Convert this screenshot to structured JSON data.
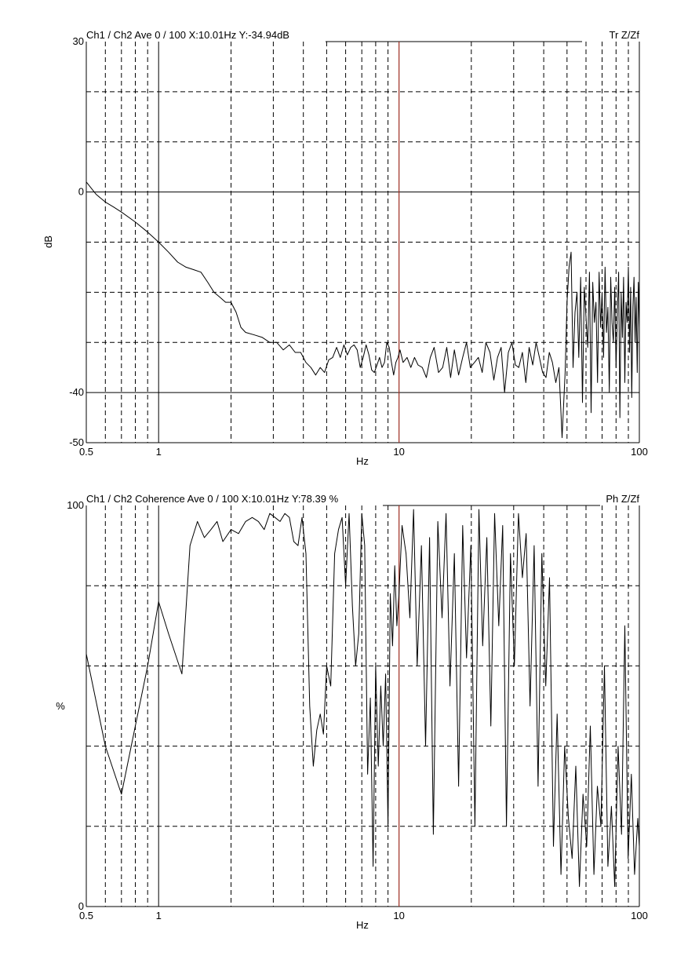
{
  "colors": {
    "cursor": "#c0392b",
    "trace": "#000000",
    "grid": "#000000",
    "background": "#ffffff"
  },
  "chart_data": [
    {
      "type": "line",
      "title": "Ch1 / Ch2  Ave 0 / 100  X:10.01Hz  Y:-34.94dB",
      "right_label": "Tr Z/Zf",
      "xlabel": "Hz",
      "ylabel": "dB",
      "x_scale": "log",
      "xlim": [
        0.5,
        100
      ],
      "ylim": [
        -50,
        30
      ],
      "x_ticks": [
        {
          "value": 0.5,
          "label": "0.5"
        },
        {
          "value": 1,
          "label": "1"
        },
        {
          "value": 10,
          "label": "10"
        },
        {
          "value": 100,
          "label": "100"
        }
      ],
      "y_ticks": [
        {
          "value": 30,
          "label": "30"
        },
        {
          "value": 0,
          "label": "0"
        },
        {
          "value": -40,
          "label": "-40"
        },
        {
          "value": -50,
          "label": "-50"
        }
      ],
      "y_grid_dashed": [
        20,
        10,
        -10,
        -20,
        -30
      ],
      "y_grid_solid": [
        0,
        -40
      ],
      "grid": true,
      "cursor_x": 10.01,
      "series": [
        {
          "x": [
            0.5,
            0.55,
            0.6,
            0.65,
            0.7,
            0.8,
            0.9,
            1.0,
            1.1,
            1.2,
            1.3,
            1.4,
            1.5,
            1.6,
            1.7,
            1.8,
            1.9,
            2.0,
            2.1,
            2.2,
            2.3,
            2.5,
            2.7,
            2.9,
            3.1,
            3.3,
            3.5,
            3.7,
            3.9,
            4.1,
            4.3,
            4.5,
            4.7,
            4.9,
            5.1,
            5.3,
            5.5,
            5.7,
            5.9,
            6.1,
            6.3,
            6.5,
            6.7,
            6.9,
            7.1,
            7.3,
            7.5,
            7.7,
            7.9,
            8.1,
            8.3,
            8.5,
            8.7,
            8.9,
            9.1,
            9.3,
            9.5,
            9.7,
            9.9,
            10.1,
            10.4,
            10.8,
            11.2,
            11.6,
            12.0,
            12.5,
            13.0,
            13.5,
            14.0,
            14.6,
            15.2,
            15.8,
            16.4,
            17.0,
            17.7,
            18.4,
            19.1,
            19.8,
            20.6,
            21.4,
            22.2,
            23.0,
            23.9,
            24.8,
            25.7,
            26.6,
            27.5,
            28.5,
            29.5,
            30.5,
            31.5,
            32.6,
            33.7,
            34.8,
            36.0,
            37.2,
            38.4,
            39.6,
            40.9,
            42.2,
            43.5,
            44.9,
            46.3,
            47.7,
            49.1,
            50.0,
            51.0,
            52.0,
            53.0,
            54.0,
            55.0,
            56.0,
            57.0,
            58.0,
            59.0,
            60.0,
            61.0,
            62.0,
            63.0,
            64.0,
            65.0,
            66.0,
            67.0,
            68.0,
            69.0,
            70.0,
            71.0,
            72.0,
            73.0,
            74.0,
            75.0,
            76.0,
            77.0,
            78.0,
            79.0,
            80.0,
            81.0,
            82.0,
            83.0,
            84.0,
            85.0,
            86.0,
            87.0,
            88.0,
            89.0,
            90.0,
            91.0,
            92.0,
            93.0,
            94.0,
            95.0,
            96.0,
            97.0,
            98.0,
            99.0,
            100.0
          ],
          "y": [
            2.0,
            -0.5,
            -2.0,
            -3.0,
            -4.0,
            -6.0,
            -8.0,
            -10.0,
            -12.0,
            -14.0,
            -15.0,
            -15.5,
            -16.0,
            -18.0,
            -20.0,
            -21.0,
            -22.0,
            -22.0,
            -24.0,
            -27.0,
            -28.0,
            -28.5,
            -29.0,
            -30.0,
            -30.0,
            -31.5,
            -30.5,
            -32.0,
            -32.0,
            -34.0,
            -35.0,
            -36.5,
            -35.0,
            -36.0,
            -33.5,
            -33.0,
            -31.0,
            -33.0,
            -30.5,
            -32.5,
            -31.0,
            -30.5,
            -31.5,
            -35.0,
            -33.0,
            -30.5,
            -32.5,
            -35.5,
            -36.0,
            -34.5,
            -33.0,
            -35.0,
            -34.0,
            -30.0,
            -31.0,
            -34.0,
            -36.5,
            -34.0,
            -33.0,
            -31.5,
            -34.0,
            -33.0,
            -35.0,
            -33.0,
            -34.5,
            -35.0,
            -37.0,
            -33.0,
            -31.0,
            -36.0,
            -35.0,
            -31.0,
            -37.0,
            -31.5,
            -36.5,
            -33.0,
            -30.0,
            -35.0,
            -34.0,
            -33.0,
            -36.0,
            -30.0,
            -32.0,
            -37.5,
            -33.0,
            -31.0,
            -40.0,
            -32.0,
            -30.0,
            -34.5,
            -35.0,
            -32.0,
            -38.0,
            -31.0,
            -34.5,
            -30.0,
            -33.0,
            -36.0,
            -37.0,
            -32.0,
            -34.0,
            -38.0,
            -35.0,
            -49.0,
            -36.0,
            -22.0,
            -15.0,
            -12.0,
            -35.0,
            -24.0,
            -20.0,
            -33.0,
            -17.0,
            -42.0,
            -19.0,
            -25.0,
            -31.0,
            -16.0,
            -44.0,
            -18.0,
            -26.0,
            -22.0,
            -38.0,
            -16.0,
            -27.0,
            -20.0,
            -33.0,
            -15.0,
            -28.0,
            -23.0,
            -40.0,
            -17.0,
            -26.0,
            -30.0,
            -19.0,
            -35.0,
            -24.0,
            -16.0,
            -45.0,
            -20.0,
            -29.0,
            -17.0,
            -38.0,
            -22.0,
            -26.0,
            -15.0,
            -32.0,
            -19.0,
            -41.0,
            -23.0,
            -17.0,
            -30.0,
            -21.0,
            -36.0,
            -18.0,
            -27.0
          ]
        }
      ]
    },
    {
      "type": "line",
      "title": "Ch1 / Ch2  Coherence Ave 0 / 100  X:10.01Hz  Y:78.39 %",
      "right_label": "Ph Z/Zf",
      "xlabel": "Hz",
      "ylabel": "%",
      "x_scale": "log",
      "xlim": [
        0.5,
        100
      ],
      "ylim": [
        0,
        100
      ],
      "x_ticks": [
        {
          "value": 0.5,
          "label": "0.5"
        },
        {
          "value": 1,
          "label": "1"
        },
        {
          "value": 10,
          "label": "10"
        },
        {
          "value": 100,
          "label": "100"
        }
      ],
      "y_ticks": [
        {
          "value": 100,
          "label": "100"
        },
        {
          "value": 0,
          "label": "0"
        }
      ],
      "y_grid_dashed": [
        80,
        60,
        40,
        20
      ],
      "y_grid_solid": [],
      "grid": true,
      "cursor_x": 10.01,
      "series": [
        {
          "x": [
            0.5,
            0.6,
            0.7,
            0.8,
            0.9,
            1.0,
            1.1,
            1.25,
            1.35,
            1.45,
            1.55,
            1.65,
            1.75,
            1.85,
            2.0,
            2.15,
            2.3,
            2.45,
            2.6,
            2.75,
            2.9,
            3.05,
            3.2,
            3.35,
            3.5,
            3.65,
            3.8,
            3.95,
            4.1,
            4.25,
            4.4,
            4.55,
            4.7,
            4.85,
            5.0,
            5.2,
            5.4,
            5.6,
            5.8,
            6.0,
            6.2,
            6.4,
            6.6,
            6.8,
            7.0,
            7.2,
            7.4,
            7.6,
            7.8,
            8.0,
            8.2,
            8.4,
            8.6,
            8.8,
            9.0,
            9.2,
            9.4,
            9.6,
            9.8,
            10.0,
            10.3,
            10.7,
            11.1,
            11.5,
            11.9,
            12.4,
            12.9,
            13.4,
            13.9,
            14.5,
            15.1,
            15.7,
            16.3,
            17.0,
            17.7,
            18.4,
            19.1,
            19.9,
            20.7,
            21.5,
            22.3,
            23.2,
            24.1,
            25.0,
            26.0,
            27.0,
            28.0,
            29.1,
            30.2,
            31.4,
            32.6,
            33.8,
            35.1,
            36.5,
            37.9,
            39.3,
            40.8,
            42.3,
            43.9,
            45.5,
            47.2,
            48.9,
            50.7,
            52.5,
            54.4,
            56.3,
            58.3,
            60.4,
            62.5,
            64.7,
            66.9,
            69.2,
            71.6,
            74.0,
            76.5,
            79.0,
            81.6,
            84.3,
            87.0,
            89.8,
            92.6,
            95.5,
            98.5,
            100.0
          ],
          "y": [
            63,
            40,
            28,
            45,
            60,
            76,
            68,
            58,
            90,
            96,
            92,
            94,
            96,
            91,
            94,
            93,
            96,
            97,
            96,
            94,
            98,
            97,
            96,
            98,
            97,
            91,
            90,
            97,
            88,
            50,
            35,
            44,
            48,
            43,
            60,
            55,
            88,
            94,
            97,
            80,
            98,
            75,
            60,
            68,
            98,
            90,
            33,
            52,
            10,
            60,
            35,
            55,
            40,
            58,
            20,
            78,
            65,
            85,
            70,
            78,
            95,
            88,
            72,
            99,
            60,
            90,
            40,
            92,
            18,
            96,
            72,
            98,
            55,
            88,
            30,
            95,
            62,
            90,
            20,
            99,
            65,
            92,
            45,
            98,
            70,
            95,
            20,
            88,
            60,
            98,
            82,
            93,
            50,
            90,
            30,
            88,
            55,
            82,
            15,
            48,
            8,
            40,
            22,
            12,
            35,
            5,
            28,
            15,
            45,
            8,
            30,
            20,
            60,
            10,
            25,
            5,
            40,
            18,
            70,
            12,
            33,
            8,
            22,
            15
          ]
        }
      ]
    }
  ]
}
